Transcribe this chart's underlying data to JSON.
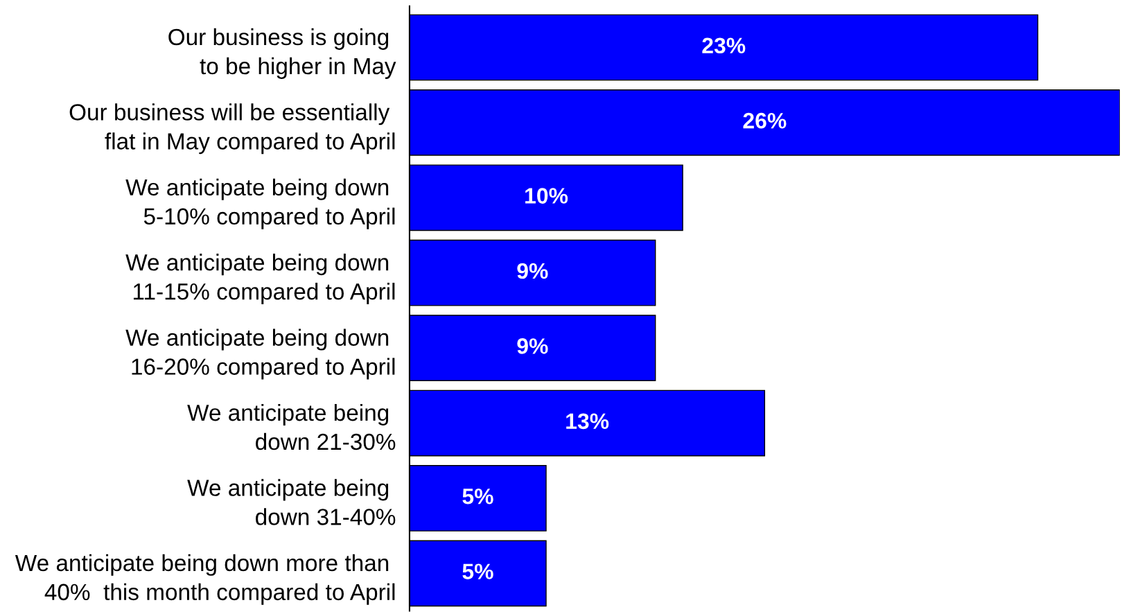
{
  "chart_data": {
    "type": "bar",
    "orientation": "horizontal",
    "categories": [
      "Our business is going \nto be higher in May",
      "Our business will be essentially \nflat in May compared to April",
      "We anticipate being down \n5-10% compared to April",
      "We anticipate being down \n11-15% compared to April",
      "We anticipate being down \n16-20% compared to April",
      "We anticipate being \ndown 21-30%",
      "We anticipate being \ndown 31-40%",
      "We anticipate being down more than \n40%  this month compared to April"
    ],
    "values": [
      23,
      26,
      10,
      9,
      9,
      13,
      5,
      5
    ],
    "value_labels": [
      "23%",
      "26%",
      "10%",
      "9%",
      "9%",
      "13%",
      "5%",
      "5%"
    ],
    "color": "#0000ff",
    "grid": false,
    "legend": false
  }
}
